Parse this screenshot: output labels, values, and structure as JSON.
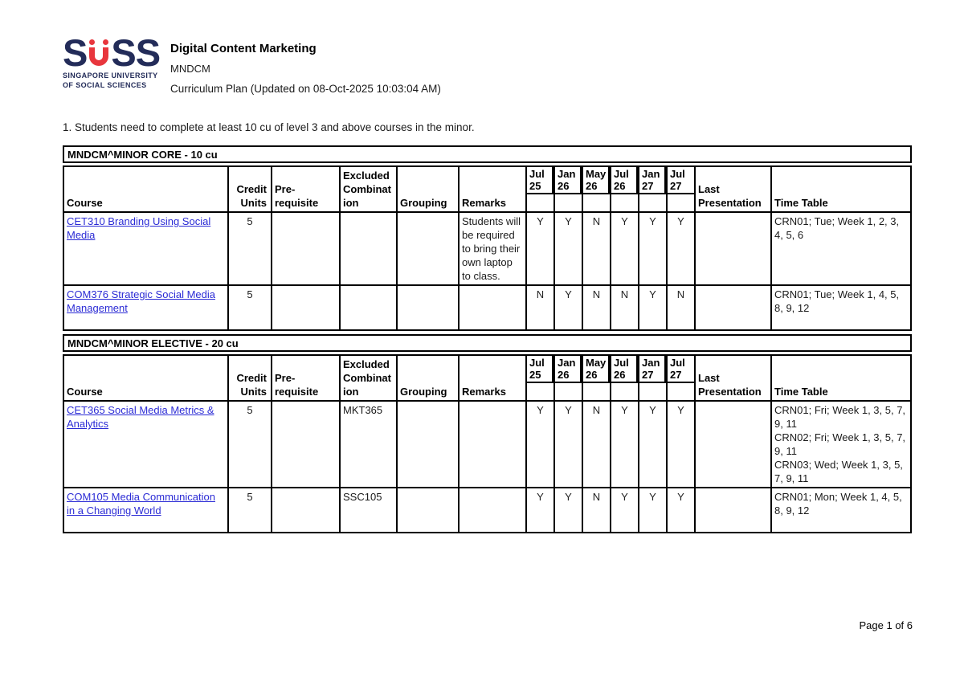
{
  "logo": {
    "letters": {
      "first": "S",
      "third": "S",
      "fourth": "S"
    },
    "tagline_line1": "SINGAPORE UNIVERSITY",
    "tagline_line2": "OF SOCIAL SCIENCES",
    "navy": "#232c59",
    "red": "#e8363d"
  },
  "header": {
    "title": "Digital Content Marketing",
    "code": "MNDCM",
    "subtitle": "Curriculum Plan (Updated on 08-Oct-2025 10:03:04 AM)"
  },
  "note": "1. Students need to complete at least 10 cu of level 3 and above courses in the minor.",
  "columns": {
    "course": "Course",
    "credit_units": "Credit Units",
    "pre_requisite": "Pre-requisite",
    "excluded_combination": "Excluded Combination",
    "grouping": "Grouping",
    "remarks": "Remarks",
    "semesters": [
      "Jul 25",
      "Jan 26",
      "May 26",
      "Jul 26",
      "Jan 27",
      "Jul 27"
    ],
    "last_presentation": "Last Presentation",
    "time_table": "Time Table"
  },
  "sections": [
    {
      "title": "MNDCM^MINOR CORE - 10 cu",
      "rows": [
        {
          "course": "CET310 Branding Using Social Media",
          "credit_units": "5",
          "pre_requisite": "",
          "excluded_combination": "",
          "grouping": "",
          "remarks": "Students will be required to bring their own laptop to class.",
          "offers": [
            "Y",
            "Y",
            "N",
            "Y",
            "Y",
            "Y"
          ],
          "last_presentation": "",
          "time_table": [
            "CRN01; Tue; Week 1, 2, 3, 4, 5, 6"
          ]
        },
        {
          "course": "COM376 Strategic Social Media Management",
          "credit_units": "5",
          "pre_requisite": "",
          "excluded_combination": "",
          "grouping": "",
          "remarks": "",
          "offers": [
            "N",
            "Y",
            "N",
            "N",
            "Y",
            "N"
          ],
          "last_presentation": "",
          "time_table": [
            "CRN01; Tue; Week 1, 4, 5, 8, 9, 12"
          ]
        }
      ]
    },
    {
      "title": "MNDCM^MINOR ELECTIVE - 20 cu",
      "rows": [
        {
          "course": "CET365 Social Media Metrics & Analytics",
          "credit_units": "5",
          "pre_requisite": "",
          "excluded_combination": "MKT365",
          "grouping": "",
          "remarks": "",
          "offers": [
            "Y",
            "Y",
            "N",
            "Y",
            "Y",
            "Y"
          ],
          "last_presentation": "",
          "time_table": [
            "CRN01; Fri; Week 1, 3, 5, 7, 9, 11",
            "CRN02; Fri; Week 1, 3, 5, 7, 9, 11",
            "CRN03; Wed; Week 1, 3, 5, 7, 9, 11"
          ]
        },
        {
          "course": "COM105 Media Communication in a Changing World",
          "credit_units": "5",
          "pre_requisite": "",
          "excluded_combination": "SSC105",
          "grouping": "",
          "remarks": "",
          "offers": [
            "Y",
            "Y",
            "N",
            "Y",
            "Y",
            "Y"
          ],
          "last_presentation": "",
          "time_table": [
            "CRN01; Mon; Week 1, 4, 5, 8, 9, 12"
          ]
        }
      ]
    }
  ],
  "footer": {
    "page_label": "Page 1 of 6"
  }
}
